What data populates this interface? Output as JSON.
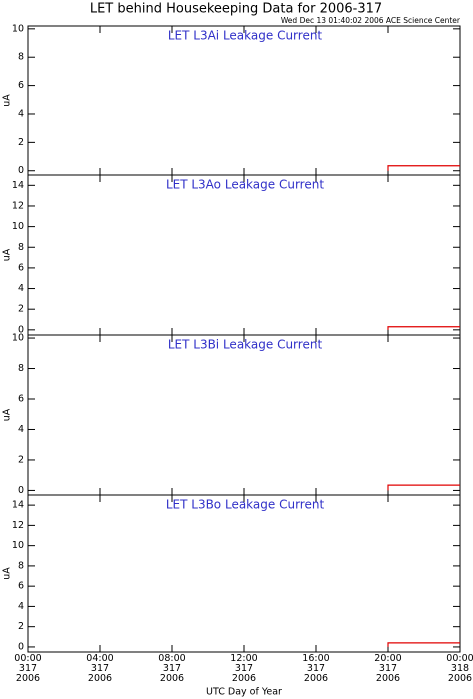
{
  "header": {
    "title": "LET behind Housekeeping Data for 2006-317",
    "subtitle": "Wed Dec 13 01:40:02 2006 ACE Science Center"
  },
  "chart_data": [
    {
      "type": "line",
      "annotation": "LET L3Ai Leakage Current",
      "ylabel": "uA",
      "xlim": [
        0,
        24
      ],
      "xticks": [
        0,
        4,
        8,
        12,
        16,
        20,
        24
      ],
      "ylim": [
        -0.3,
        10.2
      ],
      "yticks": [
        0,
        2,
        4,
        6,
        8,
        10
      ],
      "x": [
        20,
        20,
        24
      ],
      "series": [
        {
          "name": "L3Ai",
          "color": "#e00000",
          "values": [
            0,
            0.35,
            0.35
          ]
        }
      ]
    },
    {
      "type": "line",
      "annotation": "LET L3Ao Leakage Current",
      "ylabel": "uA",
      "xlim": [
        0,
        24
      ],
      "xticks": [
        0,
        4,
        8,
        12,
        16,
        20,
        24
      ],
      "ylim": [
        -0.5,
        15
      ],
      "yticks": [
        0,
        2,
        4,
        6,
        8,
        10,
        12,
        14
      ],
      "x": [
        20,
        20,
        24
      ],
      "series": [
        {
          "name": "L3Ao",
          "color": "#e00000",
          "values": [
            0,
            0.3,
            0.3
          ]
        }
      ]
    },
    {
      "type": "line",
      "annotation": "LET L3Bi Leakage Current",
      "ylabel": "uA",
      "xlim": [
        0,
        24
      ],
      "xticks": [
        0,
        4,
        8,
        12,
        16,
        20,
        24
      ],
      "ylim": [
        -0.3,
        10.2
      ],
      "yticks": [
        0,
        2,
        4,
        6,
        8,
        10
      ],
      "x": [
        20,
        20,
        24
      ],
      "series": [
        {
          "name": "L3Bi",
          "color": "#e00000",
          "values": [
            0,
            0.35,
            0.35
          ]
        }
      ]
    },
    {
      "type": "line",
      "annotation": "LET L3Bo Leakage Current",
      "ylabel": "uA",
      "xlabel": "UTC Day of Year",
      "xlim": [
        0,
        24
      ],
      "xticks": [
        {
          "value": 0,
          "label": "00:00\n317\n2006"
        },
        {
          "value": 4,
          "label": "04:00\n317\n2006"
        },
        {
          "value": 8,
          "label": "08:00\n317\n2006"
        },
        {
          "value": 12,
          "label": "12:00\n317\n2006"
        },
        {
          "value": 16,
          "label": "16:00\n317\n2006"
        },
        {
          "value": 20,
          "label": "20:00\n317\n2006"
        },
        {
          "value": 24,
          "label": "00:00\n318\n2006"
        }
      ],
      "ylim": [
        -0.5,
        15
      ],
      "yticks": [
        0,
        2,
        4,
        6,
        8,
        10,
        12,
        14
      ],
      "x": [
        20,
        20,
        24
      ],
      "series": [
        {
          "name": "L3Bo",
          "color": "#e00000",
          "values": [
            0,
            0.4,
            0.4
          ]
        }
      ]
    }
  ]
}
